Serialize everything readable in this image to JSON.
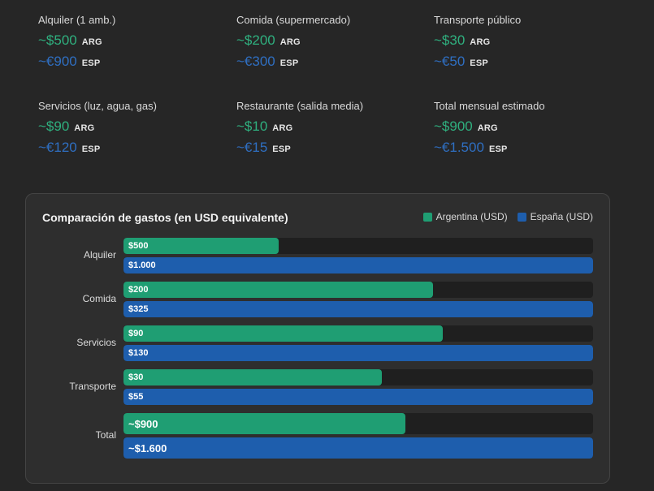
{
  "colors": {
    "argentina": "#1f9e73",
    "espana": "#1e5ead",
    "arg_text": "#2fb07f",
    "esp_text": "#2f6fc2"
  },
  "cards": [
    {
      "title": "Alquiler (1 amb.)",
      "arg_amount": "~$500",
      "arg_unit": "ARG",
      "esp_amount": "~€900",
      "esp_unit": "ESP"
    },
    {
      "title": "Comida (supermercado)",
      "arg_amount": "~$200",
      "arg_unit": "ARG",
      "esp_amount": "~€300",
      "esp_unit": "ESP"
    },
    {
      "title": "Transporte público",
      "arg_amount": "~$30",
      "arg_unit": "ARG",
      "esp_amount": "~€50",
      "esp_unit": "ESP"
    },
    {
      "title": "Servicios (luz, agua, gas)",
      "arg_amount": "~$90",
      "arg_unit": "ARG",
      "esp_amount": "~€120",
      "esp_unit": "ESP"
    },
    {
      "title": "Restaurante (salida media)",
      "arg_amount": "~$10",
      "arg_unit": "ARG",
      "esp_amount": "~€15",
      "esp_unit": "ESP"
    },
    {
      "title": "Total mensual estimado",
      "arg_amount": "~$900",
      "arg_unit": "ARG",
      "esp_amount": "~€1.500",
      "esp_unit": "ESP"
    }
  ],
  "chart_panel": {
    "title": "Comparación de gastos (en USD equivalente)",
    "legend": [
      {
        "label": "Argentina (USD)",
        "color": "#1f9e73"
      },
      {
        "label": "España (USD)",
        "color": "#1e5ead"
      }
    ]
  },
  "chart_data": {
    "type": "bar",
    "orientation": "horizontal",
    "title": "Comparación de gastos (en USD equivalente)",
    "categories": [
      "Alquiler",
      "Comida",
      "Servicios",
      "Transporte",
      "Total"
    ],
    "series": [
      {
        "name": "Argentina (USD)",
        "values": [
          500,
          200,
          90,
          30,
          900
        ],
        "labels": [
          "$500",
          "$200",
          "$90",
          "$30",
          "~$900"
        ],
        "fill_fraction": [
          0.33,
          0.66,
          0.68,
          0.55,
          0.6
        ]
      },
      {
        "name": "España (USD)",
        "values": [
          1000,
          325,
          130,
          55,
          1600
        ],
        "labels": [
          "$1.000",
          "$325",
          "$130",
          "$55",
          "~$1.600"
        ],
        "fill_fraction": [
          1.0,
          1.0,
          1.0,
          1.0,
          1.0
        ]
      }
    ],
    "legend_position": "top-right"
  }
}
